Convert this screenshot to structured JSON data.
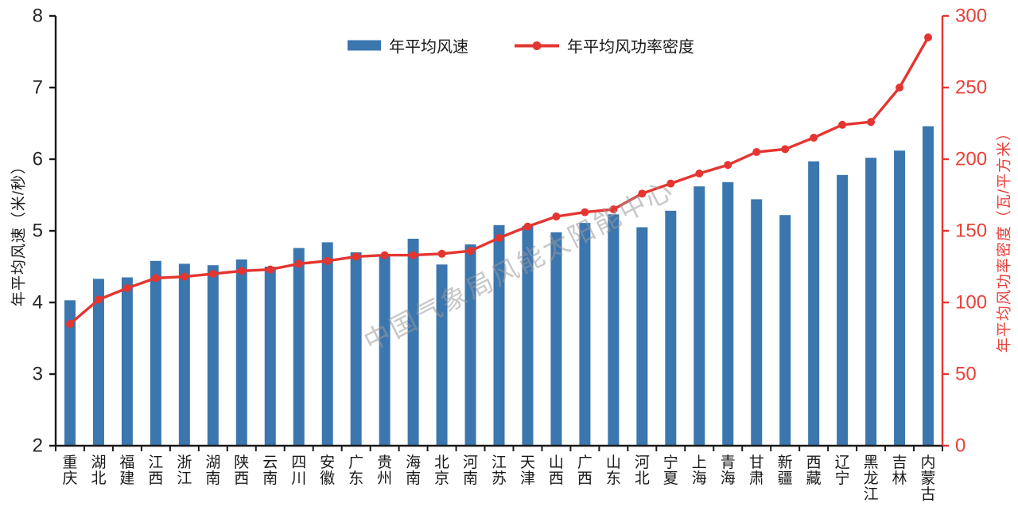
{
  "figure": {
    "background": "#ffffff",
    "bar_color": "#3b76af",
    "line_color": "#e43531",
    "right_axis_text_color": "#e8413a",
    "axis_color": "#1a1a1a",
    "watermark_color": "#9a9a9a"
  },
  "legend": {
    "bar_label": "年平均风速",
    "line_label": "年平均风功率密度"
  },
  "watermark": "中国气象局风能太阳能中心",
  "chart_data": {
    "type": "bar",
    "subtype": "bar+line combo, dual y-axis",
    "grid": false,
    "legend_position": "top-center",
    "categories": [
      "重庆",
      "湖北",
      "福建",
      "江西",
      "浙江",
      "湖南",
      "陕西",
      "云南",
      "四川",
      "安徽",
      "广东",
      "贵州",
      "海南",
      "北京",
      "河南",
      "江苏",
      "天津",
      "山西",
      "广西",
      "山东",
      "河北",
      "宁夏",
      "上海",
      "青海",
      "甘肃",
      "新疆",
      "西藏",
      "辽宁",
      "黑龙江",
      "吉林",
      "内蒙古"
    ],
    "series": [
      {
        "name": "年平均风速",
        "type": "bar",
        "axis": "left",
        "color": "#3b76af",
        "values": [
          4.03,
          4.33,
          4.35,
          4.58,
          4.54,
          4.52,
          4.6,
          4.5,
          4.76,
          4.84,
          4.7,
          4.66,
          4.89,
          4.53,
          4.81,
          5.08,
          5.07,
          4.98,
          5.11,
          5.23,
          5.05,
          5.28,
          5.62,
          5.68,
          5.44,
          5.22,
          5.97,
          5.78,
          6.02,
          6.12,
          6.46
        ]
      },
      {
        "name": "年平均风功率密度",
        "type": "line",
        "axis": "right",
        "color": "#e43531",
        "values": [
          85,
          102,
          110,
          117,
          118,
          120,
          122,
          123,
          127,
          129,
          132,
          133,
          133,
          134,
          136,
          145,
          153,
          160,
          163,
          165,
          176,
          183,
          190,
          196,
          205,
          207,
          215,
          224,
          226,
          250,
          285
        ]
      }
    ],
    "left_axis": {
      "label": "年平均风速（米/秒）",
      "min": 2,
      "max": 8,
      "tick_step": 1,
      "ticks": [
        2,
        3,
        4,
        5,
        6,
        7,
        8
      ]
    },
    "right_axis": {
      "label": "年平均风功率密度（瓦/平方米）",
      "min": 0,
      "max": 300,
      "tick_step": 50,
      "ticks": [
        0,
        50,
        100,
        150,
        200,
        250,
        300
      ]
    }
  }
}
